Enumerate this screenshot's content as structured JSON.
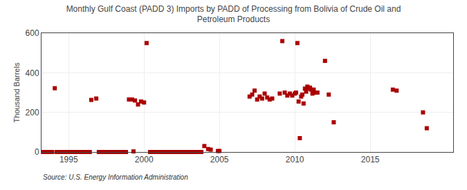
{
  "chart_data": {
    "type": "scatter",
    "title": "Monthly Gulf Coast (PADD 3) Imports by PADD of Processing from Bolivia of Crude Oil and\nPetroleum Products",
    "ylabel": "Thousand Barrels",
    "annotations": [
      "Source: U.S. Energy Information Administration"
    ],
    "color": "#aa0000",
    "marker": "square",
    "grid": true,
    "xlim": [
      1993.2,
      2020.5
    ],
    "xticks": [
      1995,
      2000,
      2005,
      2010,
      2015
    ],
    "ylim": [
      0,
      600
    ],
    "yticks": [
      0,
      200,
      400,
      600
    ],
    "x": [
      1994.08,
      1996.5,
      1996.83,
      1999.0,
      1999.2,
      1999.4,
      1999.6,
      1999.8,
      2000.0,
      2000.17,
      1993.3,
      1993.5,
      1993.7,
      1993.9,
      1994.2,
      1994.4,
      1994.6,
      1994.8,
      1995.0,
      1995.2,
      1995.4,
      1995.6,
      1995.8,
      1996.0,
      1996.2,
      1996.4,
      1997.0,
      1997.2,
      1997.4,
      1997.6,
      1997.8,
      1998.0,
      1998.2,
      1998.4,
      1998.6,
      1998.8,
      2000.4,
      2000.6,
      2000.8,
      2001.0,
      2001.2,
      2001.4,
      2001.6,
      2001.8,
      2002.0,
      2002.2,
      2002.4,
      2002.6,
      2002.8,
      2003.0,
      2003.2,
      2003.4,
      2003.6,
      2003.8,
      1999.3,
      2004.0,
      2004.25,
      2004.42,
      2004.9,
      2005.0,
      2007.0,
      2007.17,
      2007.33,
      2007.5,
      2007.67,
      2007.83,
      2008.0,
      2008.17,
      2008.33,
      2008.5,
      2009.0,
      2009.17,
      2009.33,
      2009.5,
      2009.67,
      2009.83,
      2010.0,
      2010.08,
      2010.17,
      2010.25,
      2010.33,
      2010.42,
      2010.5,
      2010.58,
      2010.67,
      2010.75,
      2010.83,
      2010.92,
      2011.0,
      2011.08,
      2011.17,
      2011.25,
      2011.33,
      2011.5,
      2012.0,
      2012.25,
      2012.58,
      2016.5,
      2016.75,
      2018.5,
      2018.75
    ],
    "values": [
      322,
      263,
      270,
      265,
      265,
      260,
      240,
      255,
      250,
      550,
      0,
      0,
      0,
      0,
      0,
      0,
      0,
      0,
      0,
      0,
      0,
      0,
      0,
      0,
      0,
      0,
      0,
      0,
      0,
      0,
      0,
      0,
      0,
      0,
      0,
      0,
      0,
      0,
      0,
      0,
      0,
      0,
      0,
      0,
      0,
      0,
      0,
      0,
      0,
      0,
      0,
      0,
      0,
      0,
      3,
      30,
      15,
      12,
      5,
      5,
      280,
      290,
      310,
      265,
      280,
      270,
      295,
      275,
      265,
      270,
      295,
      560,
      300,
      285,
      295,
      285,
      295,
      300,
      550,
      255,
      70,
      280,
      290,
      245,
      320,
      305,
      330,
      320,
      325,
      315,
      295,
      315,
      300,
      300,
      460,
      290,
      150,
      315,
      310,
      200,
      120
    ]
  }
}
